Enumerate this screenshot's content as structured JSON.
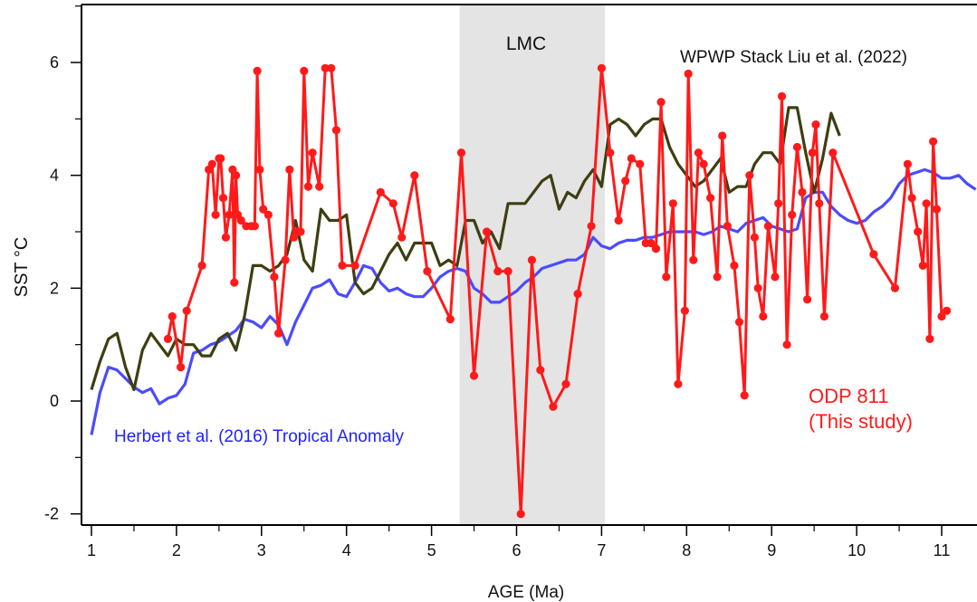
{
  "chart_data": {
    "type": "line",
    "xlabel": "AGE (Ma)",
    "ylabel": "SST  °C",
    "xlim": [
      0.88,
      11.43
    ],
    "ylim": [
      -2.25,
      7.0
    ],
    "xticks": [
      1,
      2,
      3,
      4,
      5,
      6,
      7,
      8,
      9,
      10,
      11
    ],
    "yticks": [
      -2,
      0,
      2,
      4,
      6
    ],
    "grid": false,
    "shaded_region": {
      "label": "LMC",
      "x": [
        5.33,
        7.04
      ],
      "color": "#e4e4e4"
    },
    "series": [
      {
        "name": "Herbert et al. (2016) Tropical Anomaly",
        "color": "#4b4bff",
        "markers": false,
        "x": [
          1.0,
          1.1,
          1.2,
          1.3,
          1.4,
          1.5,
          1.6,
          1.7,
          1.8,
          1.9,
          2.0,
          2.1,
          2.2,
          2.3,
          2.4,
          2.5,
          2.6,
          2.7,
          2.8,
          2.9,
          3.0,
          3.1,
          3.2,
          3.3,
          3.4,
          3.5,
          3.6,
          3.7,
          3.8,
          3.9,
          4.0,
          4.1,
          4.2,
          4.3,
          4.4,
          4.5,
          4.6,
          4.7,
          4.8,
          4.9,
          5.0,
          5.1,
          5.2,
          5.3,
          5.4,
          5.5,
          5.6,
          5.7,
          5.8,
          5.9,
          6.0,
          6.1,
          6.2,
          6.3,
          6.4,
          6.5,
          6.6,
          6.7,
          6.8,
          6.9,
          7.0,
          7.1,
          7.2,
          7.3,
          7.4,
          7.5,
          7.6,
          7.7,
          7.8,
          7.9,
          8.0,
          8.1,
          8.2,
          8.3,
          8.4,
          8.5,
          8.6,
          8.7,
          8.8,
          8.9,
          9.0,
          9.1,
          9.2,
          9.3,
          9.4,
          9.5,
          9.6,
          9.7,
          9.8,
          9.9,
          10.0,
          10.1,
          10.2,
          10.3,
          10.4,
          10.5,
          10.6,
          10.7,
          10.8,
          10.9,
          11.0,
          11.1,
          11.2,
          11.3,
          11.4
        ],
        "y": [
          -0.6,
          0.15,
          0.6,
          0.55,
          0.4,
          0.25,
          0.15,
          0.22,
          -0.05,
          0.05,
          0.1,
          0.3,
          0.85,
          0.9,
          1.0,
          1.05,
          1.15,
          1.25,
          1.45,
          1.4,
          1.3,
          1.5,
          1.35,
          1.0,
          1.4,
          1.7,
          2.0,
          2.05,
          2.15,
          1.9,
          1.85,
          2.1,
          2.4,
          2.35,
          2.1,
          1.95,
          2.0,
          1.9,
          1.85,
          1.85,
          2.0,
          2.2,
          2.3,
          2.35,
          2.3,
          2.0,
          1.9,
          1.75,
          1.75,
          1.85,
          1.95,
          2.1,
          2.2,
          2.35,
          2.4,
          2.45,
          2.5,
          2.5,
          2.6,
          2.9,
          2.75,
          2.7,
          2.8,
          2.85,
          2.85,
          2.9,
          2.9,
          2.95,
          3.0,
          3.0,
          3.0,
          3.0,
          2.95,
          3.0,
          3.1,
          3.05,
          3.0,
          3.15,
          3.2,
          3.25,
          3.1,
          3.05,
          3.0,
          3.05,
          3.6,
          3.7,
          3.7,
          3.45,
          3.3,
          3.2,
          3.15,
          3.2,
          3.35,
          3.45,
          3.6,
          3.85,
          4.0,
          4.05,
          4.1,
          4.05,
          3.95,
          3.95,
          4.0,
          3.85,
          3.75
        ]
      },
      {
        "name": "WPWP Stack Liu et al. (2022)",
        "color": "#3e3e12",
        "markers": false,
        "x": [
          1.0,
          1.1,
          1.2,
          1.3,
          1.4,
          1.5,
          1.6,
          1.7,
          1.8,
          1.9,
          2.0,
          2.1,
          2.2,
          2.3,
          2.4,
          2.5,
          2.6,
          2.7,
          2.8,
          2.9,
          3.0,
          3.1,
          3.2,
          3.3,
          3.4,
          3.5,
          3.6,
          3.7,
          3.8,
          3.9,
          4.0,
          4.1,
          4.2,
          4.3,
          4.4,
          4.5,
          4.6,
          4.7,
          4.8,
          4.9,
          5.0,
          5.1,
          5.2,
          5.3,
          5.4,
          5.5,
          5.6,
          5.7,
          5.8,
          5.9,
          6.0,
          6.1,
          6.2,
          6.3,
          6.4,
          6.5,
          6.6,
          6.7,
          6.8,
          6.9,
          7.0,
          7.1,
          7.2,
          7.3,
          7.4,
          7.5,
          7.6,
          7.7,
          7.8,
          7.9,
          8.0,
          8.1,
          8.2,
          8.3,
          8.4,
          8.5,
          8.6,
          8.7,
          8.8,
          8.9,
          9.0,
          9.1,
          9.2,
          9.3,
          9.4,
          9.5,
          9.6,
          9.7,
          9.8
        ],
        "y": [
          0.2,
          0.7,
          1.1,
          1.2,
          0.6,
          0.2,
          0.9,
          1.2,
          1.0,
          0.8,
          1.1,
          1.0,
          1.0,
          0.8,
          0.8,
          1.1,
          1.2,
          0.9,
          1.5,
          2.4,
          2.4,
          2.3,
          2.4,
          2.6,
          3.2,
          2.5,
          2.3,
          3.4,
          3.2,
          3.2,
          3.3,
          2.1,
          1.9,
          2.0,
          2.3,
          2.6,
          2.8,
          2.5,
          2.8,
          2.8,
          2.8,
          2.4,
          2.5,
          2.4,
          3.2,
          3.2,
          2.8,
          3.0,
          2.7,
          3.5,
          3.5,
          3.5,
          3.7,
          3.9,
          4.0,
          3.4,
          3.7,
          3.6,
          3.9,
          4.1,
          3.8,
          4.9,
          5.0,
          4.9,
          4.7,
          4.9,
          5.0,
          5.0,
          4.5,
          4.2,
          4.0,
          3.8,
          3.9,
          4.1,
          4.3,
          3.7,
          3.8,
          3.8,
          4.2,
          4.4,
          4.4,
          4.2,
          5.2,
          5.2,
          4.4,
          3.7,
          4.3,
          5.1,
          4.7
        ]
      },
      {
        "name": "ODP 811",
        "note": "(This study)",
        "color": "#ff1a1a",
        "markers": true,
        "x": [
          1.9,
          1.95,
          2.05,
          2.12,
          2.3,
          2.38,
          2.42,
          2.46,
          2.5,
          2.52,
          2.55,
          2.58,
          2.62,
          2.66,
          2.68,
          2.7,
          2.72,
          2.76,
          2.82,
          2.88,
          2.92,
          2.95,
          2.98,
          3.02,
          3.08,
          3.15,
          3.2,
          3.28,
          3.33,
          3.38,
          3.42,
          3.46,
          3.5,
          3.55,
          3.6,
          3.68,
          3.75,
          3.82,
          3.88,
          3.95,
          4.1,
          4.4,
          4.55,
          4.65,
          4.8,
          4.95,
          5.22,
          5.35,
          5.5,
          5.65,
          5.78,
          5.9,
          6.05,
          6.18,
          6.28,
          6.43,
          6.58,
          6.72,
          6.88,
          7.0,
          7.1,
          7.2,
          7.28,
          7.35,
          7.45,
          7.52,
          7.58,
          7.64,
          7.7,
          7.76,
          7.84,
          7.9,
          7.98,
          8.02,
          8.08,
          8.14,
          8.2,
          8.28,
          8.36,
          8.42,
          8.48,
          8.56,
          8.62,
          8.68,
          8.74,
          8.8,
          8.84,
          8.9,
          8.96,
          9.04,
          9.08,
          9.12,
          9.18,
          9.24,
          9.3,
          9.36,
          9.42,
          9.48,
          9.52,
          9.56,
          9.62,
          9.72,
          10.2,
          10.45,
          10.6,
          10.65,
          10.72,
          10.78,
          10.82,
          10.86,
          10.9,
          10.94,
          11.0,
          11.06
        ],
        "y": [
          1.1,
          1.5,
          0.6,
          1.6,
          2.4,
          4.1,
          4.2,
          3.3,
          4.3,
          4.3,
          3.6,
          2.9,
          3.3,
          4.1,
          2.1,
          4.0,
          3.3,
          3.2,
          3.1,
          3.1,
          3.1,
          5.85,
          4.1,
          3.4,
          3.3,
          2.2,
          1.2,
          2.5,
          4.1,
          2.9,
          3.0,
          3.0,
          5.85,
          3.8,
          4.4,
          3.8,
          5.9,
          5.9,
          4.8,
          2.4,
          2.4,
          3.7,
          3.5,
          2.9,
          4.0,
          2.3,
          1.45,
          4.4,
          0.45,
          3.0,
          2.3,
          2.3,
          -2.0,
          2.5,
          0.55,
          -0.1,
          0.3,
          1.9,
          3.1,
          5.9,
          4.4,
          3.2,
          3.9,
          4.3,
          4.2,
          2.8,
          2.8,
          2.7,
          5.3,
          2.2,
          3.5,
          0.3,
          1.6,
          5.8,
          2.5,
          4.4,
          4.2,
          3.6,
          2.2,
          4.7,
          3.1,
          2.4,
          1.4,
          0.1,
          4.0,
          2.9,
          2.0,
          1.5,
          3.1,
          2.2,
          3.5,
          5.4,
          1.0,
          3.3,
          4.5,
          3.7,
          1.8,
          4.4,
          4.9,
          3.5,
          1.5,
          4.4,
          2.6,
          2.0,
          4.2,
          3.6,
          3.0,
          2.4,
          3.5,
          1.1,
          4.6,
          3.4,
          1.5,
          1.6
        ]
      }
    ],
    "annotations": [
      {
        "id": "lmc",
        "text": "LMC",
        "color": "#111111"
      },
      {
        "id": "wpwp",
        "text": "WPWP Stack Liu et al. (2022)",
        "color": "#111111"
      },
      {
        "id": "herbert",
        "text": "Herbert et al. (2016) Tropical Anomaly",
        "color": "#2222ff"
      },
      {
        "id": "odp1",
        "text": "ODP 811",
        "color": "#ff1a1a"
      },
      {
        "id": "odp2",
        "text": "(This study)",
        "color": "#ff1a1a"
      }
    ]
  }
}
